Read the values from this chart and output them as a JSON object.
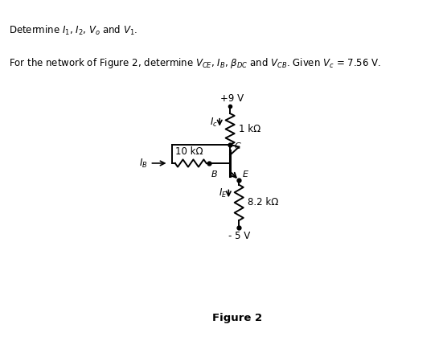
{
  "bg_color": "#ffffff",
  "title_line1": "Determine $I_1$, $I_2$, $V_o$ and $V_1$.",
  "title_line2": "For the network of Figure 2, determine $V_{CE}$, $I_B$, $\\beta_{DC}$ and $V_{CB}$. Given $V_c$ = 7.56 V.",
  "figure_label": "Figure 2",
  "vcc": "+9 V",
  "vee": "- 5 V",
  "r1_label": "1 kΩ",
  "r2_label": "10 kΩ",
  "r3_label": "8.2 kΩ",
  "ic_label": "$I_c$",
  "ib_label": "$I_B$",
  "ie_label": "$I_E$",
  "node_c": "C",
  "node_b": "B",
  "node_e": "E"
}
